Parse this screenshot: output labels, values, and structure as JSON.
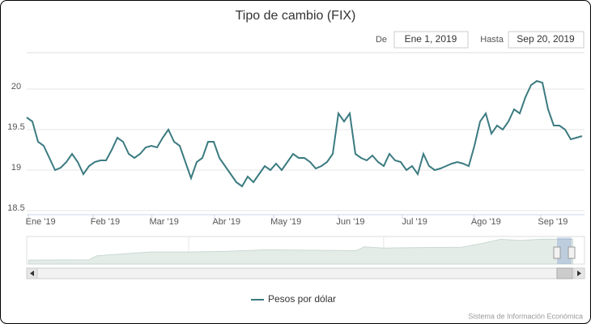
{
  "chart_data": [
    {
      "type": "line",
      "title": "Tipo de cambio (FIX)",
      "from_label": "De",
      "from": "Ene 1, 2019",
      "to_label": "Hasta",
      "to": "Sep 20, 2019",
      "credit": "Sistema de Información Económica",
      "xlim": [
        0,
        98
      ],
      "xticks": [
        {
          "value": 0.3,
          "label": "Ene '19"
        },
        {
          "value": 11.7,
          "label": "Feb '19"
        },
        {
          "value": 22.1,
          "label": "Mar '19"
        },
        {
          "value": 33.1,
          "label": "Abr '19"
        },
        {
          "value": 43.6,
          "label": "May '19"
        },
        {
          "value": 55,
          "label": "Jun '19"
        },
        {
          "value": 66.3,
          "label": "Jul '19"
        },
        {
          "value": 78.9,
          "label": "Ago '19"
        },
        {
          "value": 90.7,
          "label": "Sep '19"
        }
      ],
      "ylim": [
        18.45,
        20.45
      ],
      "yticks": [
        18.5,
        19,
        19.5,
        20
      ],
      "grid": true,
      "series": [
        {
          "name": "Pesos por dólar",
          "color": "#3b7b80",
          "values": [
            19.65,
            19.6,
            19.35,
            19.3,
            19.15,
            19.0,
            19.03,
            19.1,
            19.2,
            19.1,
            18.95,
            19.05,
            19.1,
            19.12,
            19.12,
            19.25,
            19.4,
            19.35,
            19.2,
            19.15,
            19.2,
            19.28,
            19.3,
            19.28,
            19.4,
            19.5,
            19.35,
            19.3,
            19.1,
            18.9,
            19.1,
            19.15,
            19.35,
            19.35,
            19.15,
            19.05,
            18.95,
            18.85,
            18.8,
            18.92,
            18.85,
            18.95,
            19.05,
            19.0,
            19.08,
            19.0,
            19.1,
            19.2,
            19.15,
            19.15,
            19.1,
            19.02,
            19.05,
            19.1,
            19.2,
            19.7,
            19.6,
            19.7,
            19.2,
            19.15,
            19.12,
            19.18,
            19.1,
            19.05,
            19.2,
            19.12,
            19.1,
            19.0,
            19.05,
            18.95,
            19.2,
            19.05,
            19.0,
            19.02,
            19.05,
            19.08,
            19.1,
            19.08,
            19.05,
            19.3,
            19.6,
            19.7,
            19.45,
            19.55,
            19.5,
            19.6,
            19.75,
            19.7,
            19.9,
            20.05,
            20.1,
            20.08,
            19.75,
            19.55,
            19.55,
            19.5,
            19.38,
            19.4,
            19.42
          ]
        }
      ]
    },
    {
      "type": "area",
      "color": "#e4ece8",
      "xlim": [
        1991.7,
        2020.3
      ],
      "ylim": [
        0,
        21
      ],
      "xticks": [
        2000,
        2010
      ],
      "x": [
        1991.8,
        1994.9,
        1995.3,
        1998,
        2000,
        2002,
        2004,
        2006,
        2008.6,
        2009,
        2010,
        2012,
        2014,
        2015,
        2016,
        2017,
        2018,
        2019.7
      ],
      "values": [
        3.1,
        3.4,
        6.5,
        9.5,
        9.5,
        10,
        11.2,
        10.9,
        10.5,
        13.5,
        12.6,
        13,
        13.2,
        16,
        19.5,
        18.5,
        19.5,
        19.4
      ]
    }
  ]
}
